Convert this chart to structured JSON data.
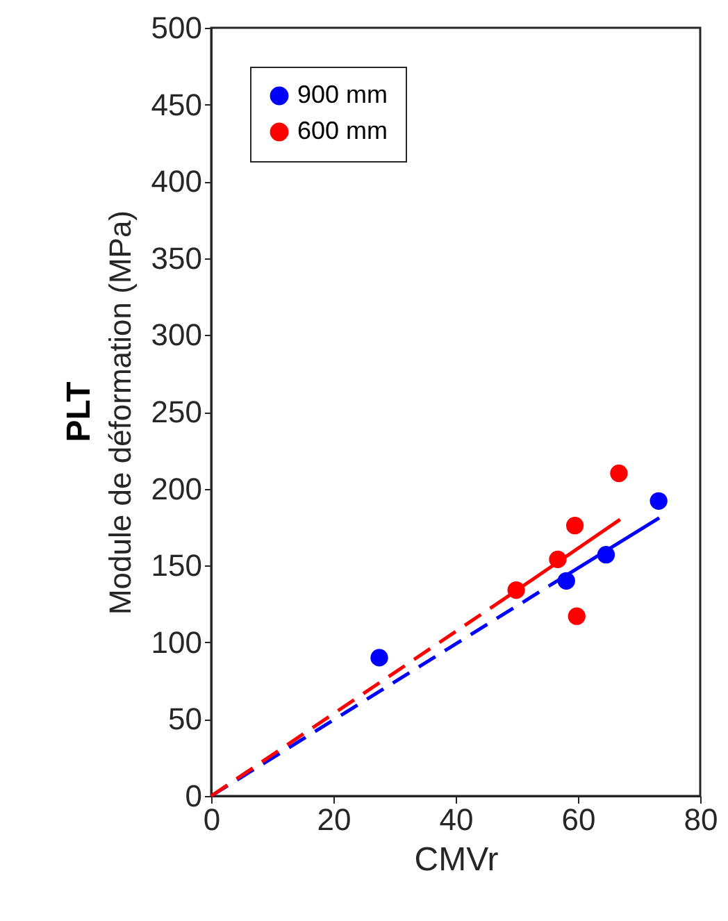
{
  "chart_data": {
    "type": "scatter",
    "title": "PLT",
    "xlabel": "CMVr",
    "ylabel": "Module de déformation (MPa)",
    "xlim": [
      0,
      80
    ],
    "xticks": [
      0,
      20,
      40,
      60,
      80
    ],
    "ylim": [
      0,
      500
    ],
    "yticks": [
      0,
      50,
      100,
      150,
      200,
      250,
      300,
      350,
      400,
      450,
      500
    ],
    "legend": "top left",
    "series": [
      {
        "name": "900 mm",
        "color": "#0000ff",
        "marker": "circle",
        "x": [
          27.5,
          58.1,
          64.6,
          73.2
        ],
        "values": [
          90,
          140,
          157,
          192
        ]
      },
      {
        "name": "600 mm",
        "color": "#ff0000",
        "marker": "circle",
        "x": [
          49.9,
          56.7,
          59.5,
          59.8,
          66.7
        ],
        "values": [
          134,
          154,
          176,
          117,
          210
        ]
      },
      {
        "type": "line",
        "color": "#0000ff",
        "line_style": "dashed",
        "x": [
          0,
          55.4
        ],
        "values": [
          0,
          137
        ]
      },
      {
        "type": "line",
        "color": "#0000ff",
        "line_style": "solid",
        "x": [
          55.4,
          73.3
        ],
        "values": [
          137,
          181
        ]
      },
      {
        "type": "line",
        "color": "#ff0000",
        "line_style": "dashed",
        "x": [
          0,
          48.2
        ],
        "values": [
          0,
          129
        ]
      },
      {
        "type": "line",
        "color": "#ff0000",
        "line_style": "solid",
        "x": [
          48.2,
          66.9
        ],
        "values": [
          129,
          180
        ]
      }
    ]
  }
}
